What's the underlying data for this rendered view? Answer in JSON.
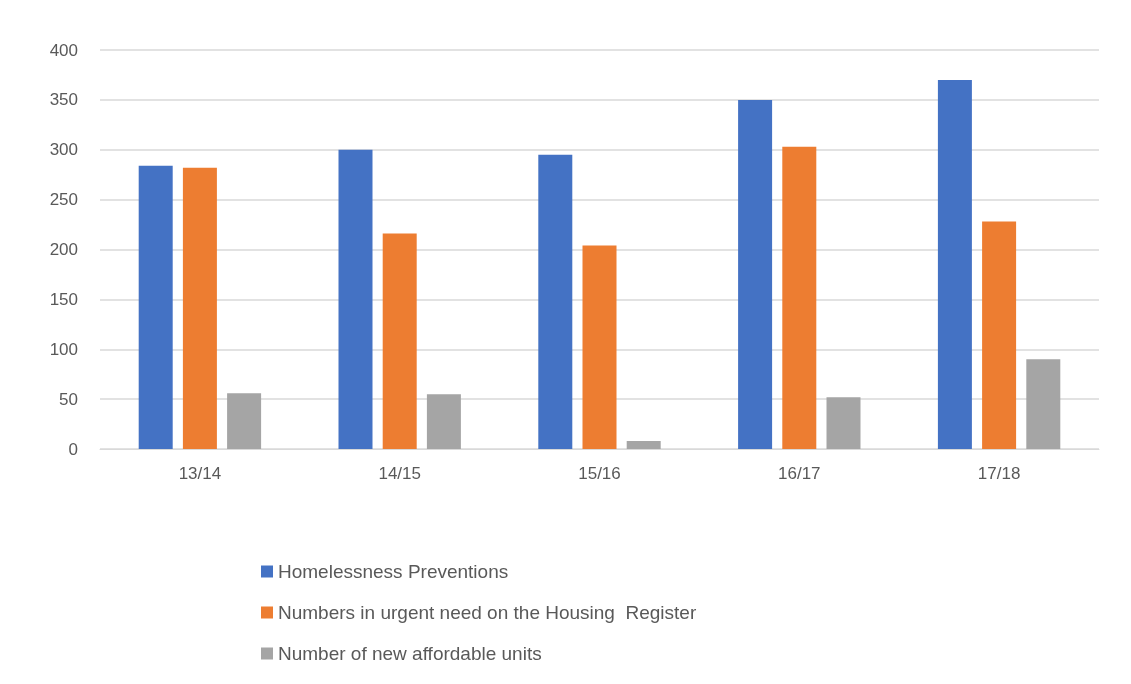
{
  "chart_data": {
    "type": "bar",
    "categories": [
      "13/14",
      "14/15",
      "15/16",
      "16/17",
      "17/18"
    ],
    "series": [
      {
        "name": "Homelessness Preventions",
        "color": "#4472c4",
        "values": [
          284,
          300,
          295,
          350,
          370
        ]
      },
      {
        "name": "Numbers in urgent need on the Housing  Register",
        "color": "#ed7d31",
        "values": [
          282,
          216,
          204,
          303,
          228
        ]
      },
      {
        "name": "Number of new affordable units",
        "color": "#a5a5a5",
        "values": [
          56,
          55,
          8,
          52,
          90
        ]
      }
    ],
    "ylim": [
      0,
      400
    ],
    "yticks": [
      0,
      50,
      100,
      150,
      200,
      250,
      300,
      350,
      400
    ],
    "grid": "y",
    "legend": "bottom"
  }
}
